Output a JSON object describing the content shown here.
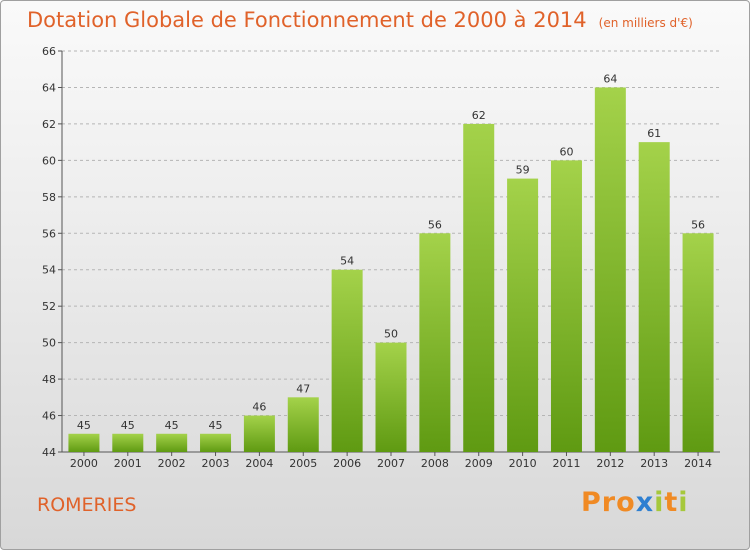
{
  "page": {
    "title": "Dotation Globale de Fonctionnement de 2000 à 2014",
    "unit_note": "(en milliers d'€)",
    "commune": "ROMERIES",
    "brand": {
      "text": "Proxiti",
      "letter_colors": [
        "#f08a24",
        "#f08a24",
        "#f08a24",
        "#2e7fd1",
        "#a6c83b",
        "#f08a24",
        "#a6c83b"
      ]
    }
  },
  "colors": {
    "bar_top": "#a4d24a",
    "bar_bottom": "#5f9a12",
    "title": "#e0622a",
    "grid": "#b5b5b5"
  },
  "chart_data": {
    "type": "bar",
    "categories": [
      "2000",
      "2001",
      "2002",
      "2003",
      "2004",
      "2005",
      "2006",
      "2007",
      "2008",
      "2009",
      "2010",
      "2011",
      "2012",
      "2013",
      "2014"
    ],
    "values": [
      45,
      45,
      45,
      45,
      46,
      47,
      54,
      50,
      56,
      62,
      59,
      60,
      64,
      61,
      56
    ],
    "data_labels": [
      "45",
      "45",
      "45",
      "45",
      "46",
      "47",
      "54",
      "50",
      "56",
      "62",
      "59",
      "60",
      "64",
      "61",
      "56"
    ],
    "ylim": [
      44,
      66
    ],
    "yticks": [
      44,
      46,
      48,
      50,
      52,
      54,
      56,
      58,
      60,
      62,
      64,
      66
    ],
    "ytick_labels": [
      "44",
      "46",
      "48",
      "50",
      "52",
      "54",
      "56",
      "58",
      "60",
      "62",
      "64",
      "66"
    ],
    "grid": true,
    "xlabel": "",
    "ylabel": ""
  }
}
